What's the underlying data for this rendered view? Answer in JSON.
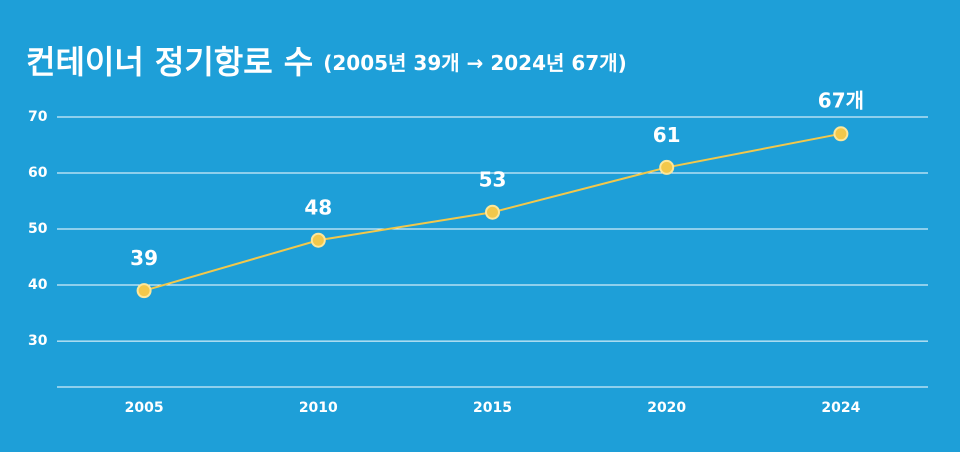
{
  "chart_data": {
    "type": "line",
    "title": "컨테이너 정기항로 수",
    "subtitle": "(2005년 39개 → 2024년 67개)",
    "categories": [
      "2005",
      "2010",
      "2015",
      "2020",
      "2024"
    ],
    "values": [
      39,
      48,
      53,
      61,
      67
    ],
    "value_labels": [
      "39",
      "48",
      "53",
      "61",
      "67개"
    ],
    "color": "#f2c84b",
    "ylim": [
      21.8,
      70
    ],
    "yticks": [
      30,
      40,
      50,
      60,
      70
    ],
    "grid": true
  }
}
